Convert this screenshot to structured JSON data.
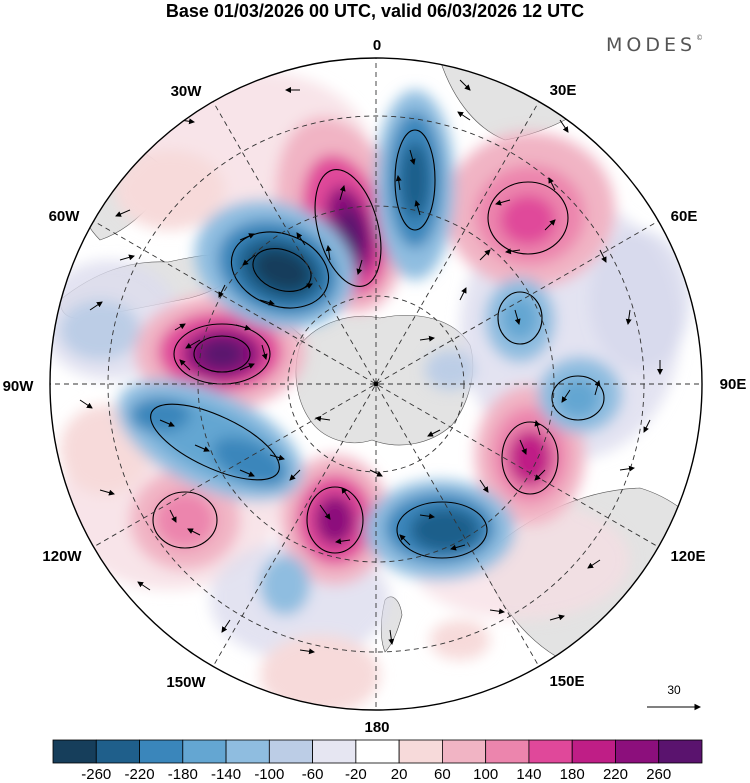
{
  "header": {
    "title": "Base 01/03/2026 00 UTC, valid 06/03/2026 12 UTC",
    "brand": "MODES",
    "brand_mark": "©"
  },
  "map": {
    "projection": "south polar stereographic",
    "longitude_labels": {
      "lon_0": "0",
      "lon_30e": "30E",
      "lon_60e": "60E",
      "lon_90e": "90E",
      "lon_120e": "120E",
      "lon_150e": "150E",
      "lon_180": "180",
      "lon_150w": "150W",
      "lon_120w": "120W",
      "lon_90w": "90W",
      "lon_60w": "60W",
      "lon_30w": "30W"
    },
    "reference_vector": "30"
  },
  "colorbar": {
    "colors": [
      "#163e5b",
      "#1f5f8b",
      "#3a86bb",
      "#64a6d2",
      "#8fbde0",
      "#bccde6",
      "#e6e6f2",
      "#ffffff",
      "#f7dada",
      "#f1b4c4",
      "#ec85ad",
      "#e0489a",
      "#bf1e86",
      "#8c0f7c",
      "#5a136e"
    ],
    "ticks": [
      "-260",
      "-220",
      "-180",
      "-140",
      "-100",
      "-60",
      "-20",
      "20",
      "60",
      "100",
      "140",
      "180",
      "220",
      "260"
    ]
  }
}
